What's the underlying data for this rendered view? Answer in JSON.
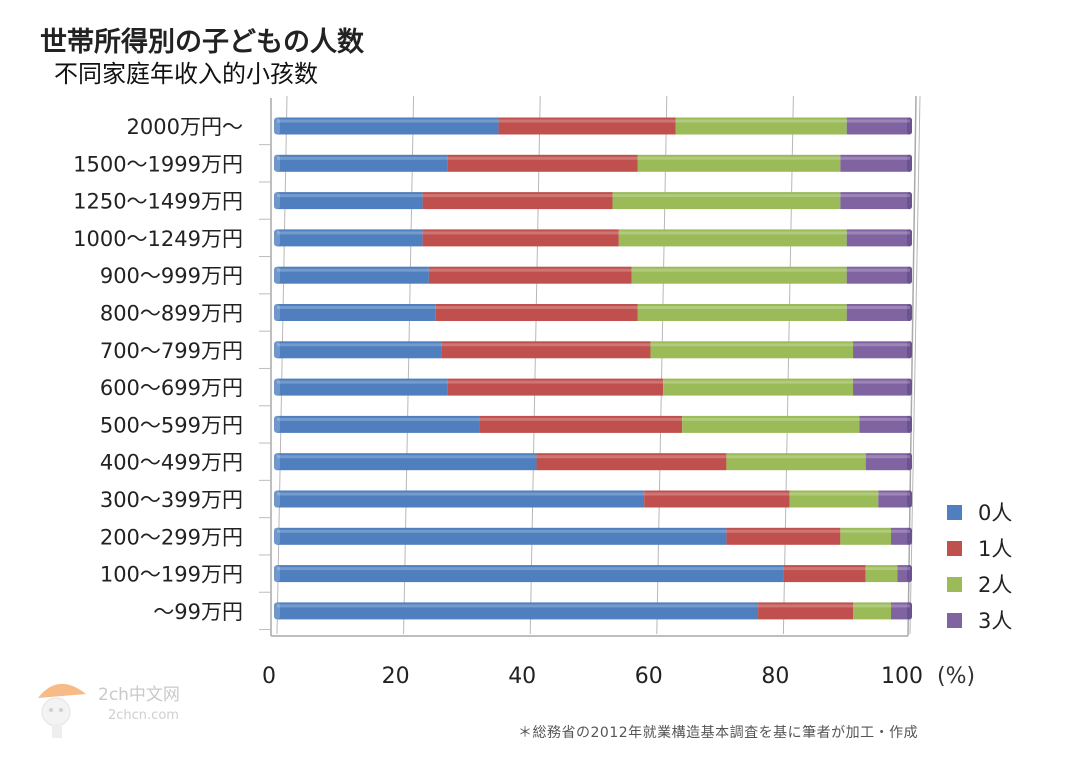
{
  "title": "世帯所得別の子どもの人数",
  "subtitle": "不同家庭年收入的小孩数",
  "source_note": "＊総務省の2012年就業構造基本調査を基に筆者が加工・作成",
  "watermark": {
    "line1": "2ch中文网",
    "line2": "2chcn.com"
  },
  "colors": {
    "s0": "#4f7fbf",
    "s1": "#c0504d",
    "s2": "#9bbb59",
    "s3": "#8064a2"
  },
  "chart_data": {
    "type": "bar",
    "orientation": "horizontal",
    "stacked": true,
    "title": "世帯所得別の子どもの人数",
    "x_unit": "(%)",
    "xlim": [
      0,
      100
    ],
    "x_ticks": [
      0,
      20,
      40,
      60,
      80,
      100
    ],
    "grid": true,
    "legend_position": "right",
    "categories": [
      "2000万円～",
      "1500～1999万円",
      "1250～1499万円",
      "1000～1249万円",
      "900～999万円",
      "800～899万円",
      "700～799万円",
      "600～699万円",
      "500～599万円",
      "400～499万円",
      "300～399万円",
      "200～299万円",
      "100～199万円",
      "～99万円"
    ],
    "series": [
      {
        "name": "0人",
        "values": [
          35,
          27,
          23,
          23,
          24,
          25,
          26,
          27,
          32,
          41,
          58,
          71,
          80,
          76
        ]
      },
      {
        "name": "1人",
        "values": [
          28,
          30,
          30,
          31,
          32,
          32,
          33,
          34,
          32,
          30,
          23,
          18,
          13,
          15
        ]
      },
      {
        "name": "2人",
        "values": [
          27,
          32,
          36,
          36,
          34,
          33,
          32,
          30,
          28,
          22,
          14,
          8,
          5,
          6
        ]
      },
      {
        "name": "3人",
        "values": [
          10,
          11,
          11,
          10,
          10,
          10,
          9,
          9,
          8,
          7,
          5,
          3,
          2,
          3
        ]
      }
    ]
  }
}
